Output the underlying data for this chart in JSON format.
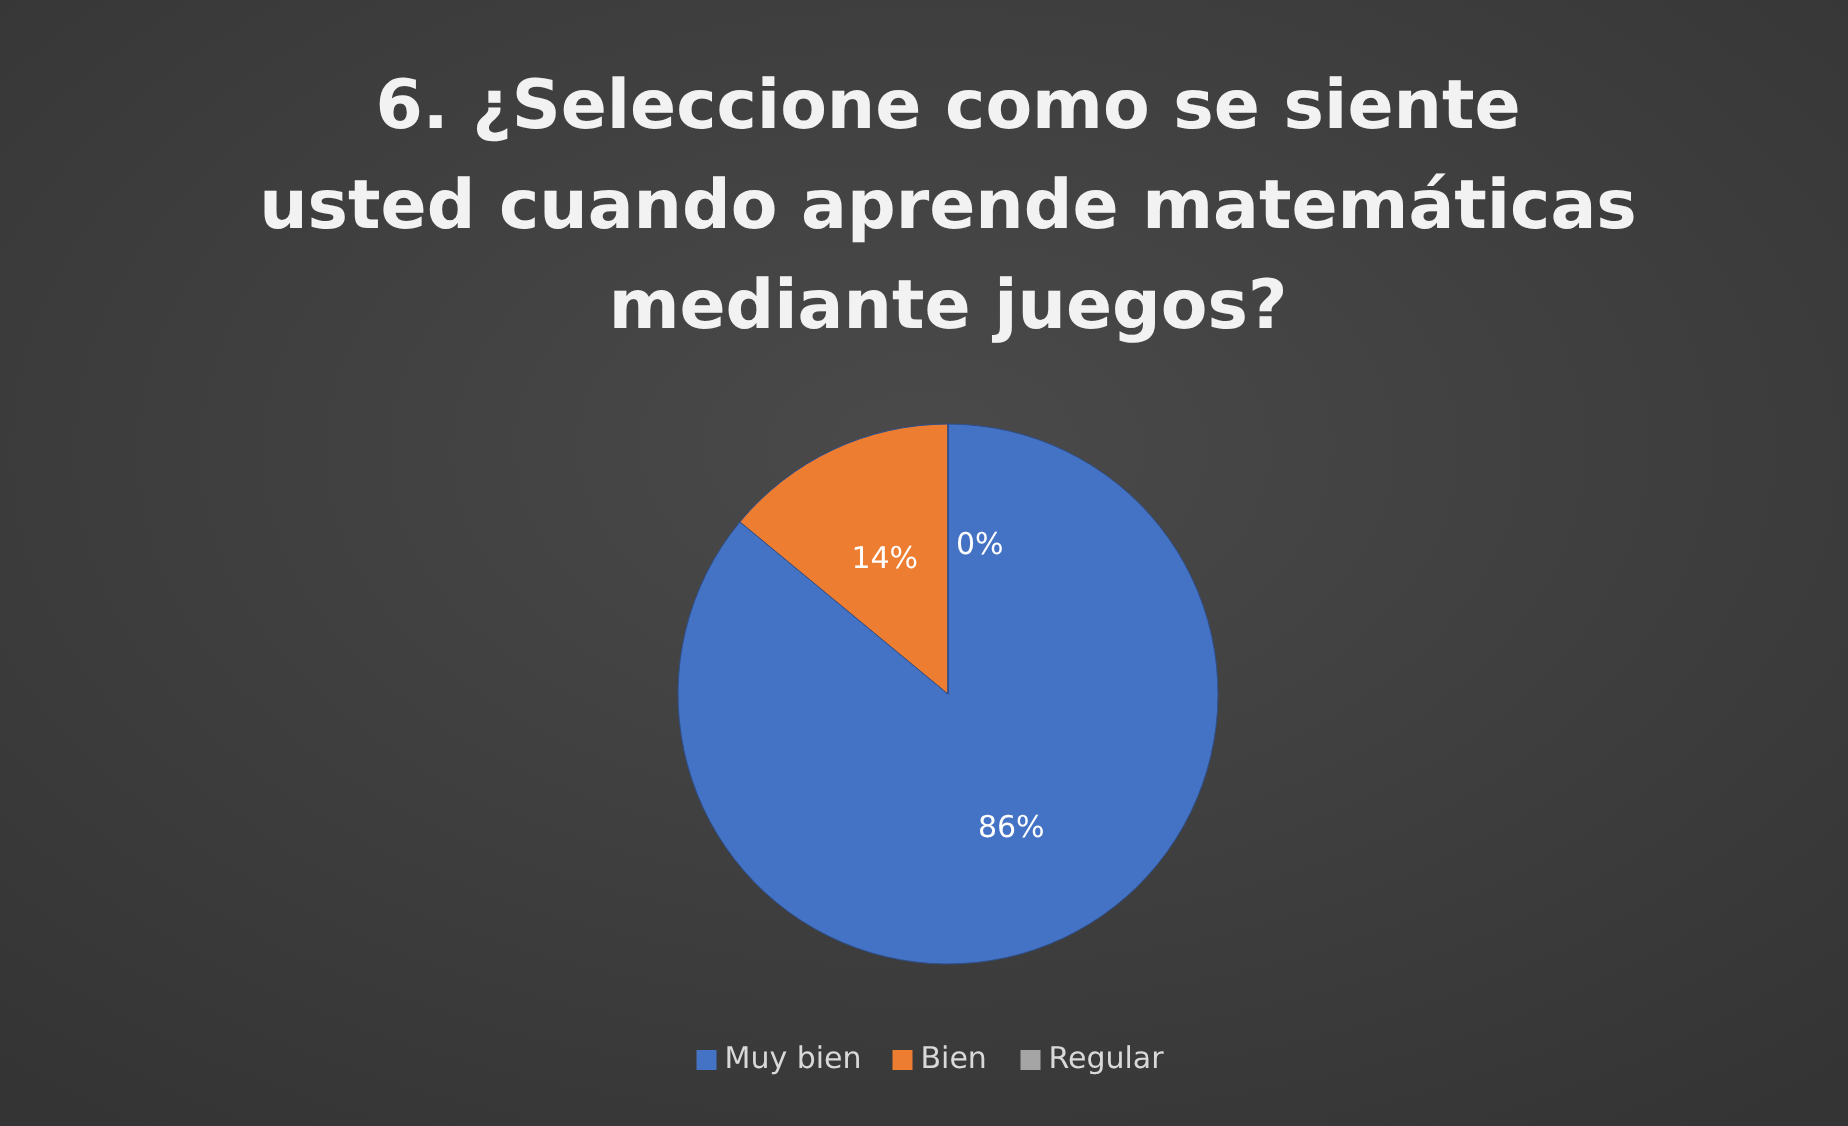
{
  "chart_data": {
    "type": "pie",
    "title": "6. ¿Seleccione como se siente usted cuando aprende matemáticas mediante juegos?",
    "categories": [
      "Muy bien",
      "Bien",
      "Regular"
    ],
    "values": [
      86,
      14,
      0
    ],
    "colors": [
      "#4472c4",
      "#ed7d31",
      "#a5a5a5"
    ],
    "value_labels": [
      "86%",
      "14%",
      "0%"
    ],
    "legend": "bottom"
  }
}
